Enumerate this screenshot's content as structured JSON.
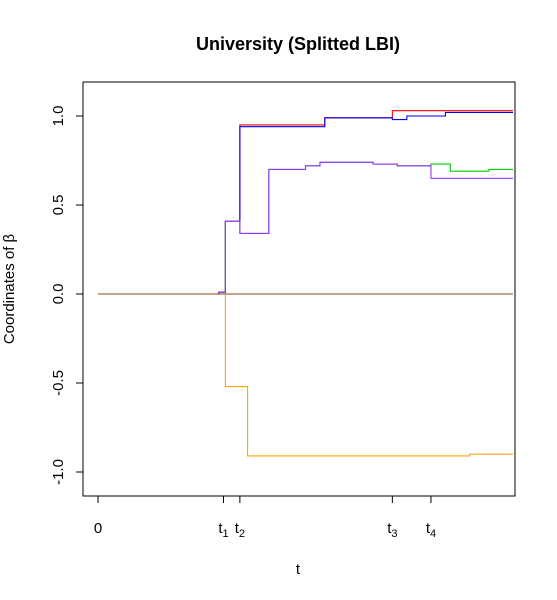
{
  "chart_data": {
    "type": "line",
    "title": "University (Splitted LBI)",
    "xlabel": "t",
    "ylabel": "Coordinates of β",
    "ylim": [
      -1.1,
      1.15
    ],
    "xlim": [
      0,
      4.3
    ],
    "y_ticks": [
      "1.0",
      "0.5",
      "0.0",
      "-0.5",
      "-1.0"
    ],
    "y_tick_values": [
      1.0,
      0.5,
      0.0,
      -0.5,
      -1.0
    ],
    "x_ticks": [
      {
        "value": 0,
        "label": "0",
        "sub": ""
      },
      {
        "value": 1.3,
        "label": "t",
        "sub": "1"
      },
      {
        "value": 1.47,
        "label": "t",
        "sub": "2"
      },
      {
        "value": 3.05,
        "label": "t",
        "sub": "3"
      },
      {
        "value": 3.45,
        "label": "t",
        "sub": "4"
      }
    ],
    "series": [
      {
        "color": "#ff0000",
        "x": [
          0,
          1.25,
          1.32,
          1.47,
          2.35,
          3.05,
          4.3
        ],
        "y": [
          0,
          0.01,
          0.41,
          0.95,
          0.99,
          1.03,
          1.03
        ]
      },
      {
        "color": "#0000ff",
        "x": [
          0,
          1.25,
          1.32,
          1.47,
          2.35,
          3.05,
          3.2,
          3.6,
          4.3
        ],
        "y": [
          0,
          0.01,
          0.41,
          0.94,
          0.99,
          0.98,
          1.0,
          1.02,
          1.02
        ]
      },
      {
        "color": "#00cc00",
        "x": [
          0,
          1.25,
          1.32,
          1.47,
          1.77,
          2.15,
          2.3,
          2.85,
          3.1,
          3.25,
          3.45,
          3.65,
          4.05,
          4.3
        ],
        "y": [
          0,
          0.01,
          0.41,
          0.34,
          0.7,
          0.72,
          0.74,
          0.73,
          0.72,
          0.72,
          0.73,
          0.69,
          0.7,
          0.7
        ]
      },
      {
        "color": "#9933ff",
        "x": [
          0,
          1.25,
          1.32,
          1.47,
          1.77,
          2.15,
          2.3,
          2.85,
          3.1,
          3.25,
          3.45,
          3.6,
          4.3
        ],
        "y": [
          0,
          0.01,
          0.41,
          0.34,
          0.7,
          0.72,
          0.74,
          0.73,
          0.72,
          0.72,
          0.65,
          0.65,
          0.65
        ]
      },
      {
        "color": "#ffa500",
        "x": [
          0,
          1.25,
          1.32,
          1.55,
          3.85,
          4.3
        ],
        "y": [
          0,
          0,
          -0.52,
          -0.91,
          -0.9,
          -0.9
        ]
      },
      {
        "color": "#8b4513",
        "x": [
          0,
          1.25,
          4.3
        ],
        "y": [
          0,
          0,
          0
        ]
      }
    ]
  }
}
